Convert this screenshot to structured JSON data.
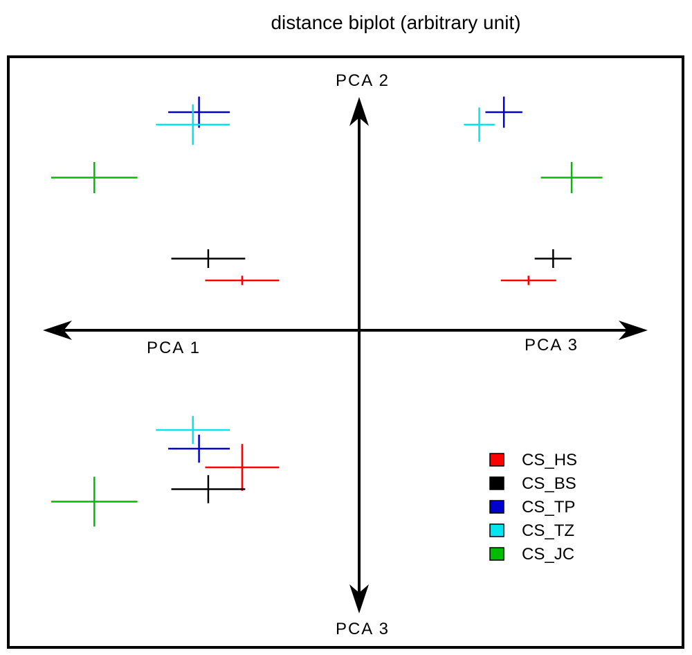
{
  "chart_data": {
    "type": "scatter",
    "title": "distance biplot (arbitrary unit)",
    "axis_labels": {
      "left": "PCA 1",
      "right": "PCA 3",
      "top": "PCA 2",
      "bottom": "PCA 3"
    },
    "xlim": [
      -100,
      100
    ],
    "ylim": [
      -100,
      100
    ],
    "error_bars": "crosses show spread along each axis",
    "series": [
      {
        "name": "CS_HS",
        "color": "#ff0000",
        "points": [
          {
            "panel": "PCA1-PCA2",
            "x": -38,
            "y": 16,
            "xerr": 12,
            "yerr": 1.5
          },
          {
            "panel": "PCA3-PCA2",
            "x": 55,
            "y": 16,
            "xerr": 9,
            "yerr": 1.5
          },
          {
            "panel": "PCA1-PCA3",
            "x": -38,
            "y": -44,
            "xerr": 12,
            "yerr": 7.5
          }
        ]
      },
      {
        "name": "CS_BS",
        "color": "#000000",
        "points": [
          {
            "panel": "PCA1-PCA2",
            "x": -49,
            "y": 23,
            "xerr": 12,
            "yerr": 3
          },
          {
            "panel": "PCA3-PCA2",
            "x": 63,
            "y": 23,
            "xerr": 6,
            "yerr": 3
          },
          {
            "panel": "PCA1-PCA3",
            "x": -49,
            "y": -51,
            "xerr": 12,
            "yerr": 4.5
          }
        ]
      },
      {
        "name": "CS_TP",
        "color": "#0000cc",
        "points": [
          {
            "panel": "PCA1-PCA2",
            "x": -52,
            "y": 70,
            "xerr": 10,
            "yerr": 5
          },
          {
            "panel": "PCA3-PCA2",
            "x": 47,
            "y": 70,
            "xerr": 6,
            "yerr": 5
          },
          {
            "panel": "PCA1-PCA3",
            "x": -52,
            "y": -38,
            "xerr": 10,
            "yerr": 4.5
          }
        ]
      },
      {
        "name": "CS_TZ",
        "color": "#00e5ee",
        "points": [
          {
            "panel": "PCA1-PCA2",
            "x": -54,
            "y": 66,
            "xerr": 12,
            "yerr": 6.5
          },
          {
            "panel": "PCA3-PCA2",
            "x": 39,
            "y": 66,
            "xerr": 5,
            "yerr": 5.5
          },
          {
            "panel": "PCA1-PCA3",
            "x": -54,
            "y": -32,
            "xerr": 12,
            "yerr": 4.5
          }
        ]
      },
      {
        "name": "CS_JC",
        "color": "#00bb00",
        "points": [
          {
            "panel": "PCA1-PCA2",
            "x": -86,
            "y": 49,
            "xerr": 14,
            "yerr": 5
          },
          {
            "panel": "PCA3-PCA2",
            "x": 69,
            "y": 49,
            "xerr": 10,
            "yerr": 5
          },
          {
            "panel": "PCA1-PCA3",
            "x": -86,
            "y": -55,
            "xerr": 14,
            "yerr": 8
          }
        ]
      }
    ],
    "legend": {
      "position": "bottom-right",
      "entries": [
        "CS_HS",
        "CS_BS",
        "CS_TP",
        "CS_TZ",
        "CS_JC"
      ]
    }
  }
}
